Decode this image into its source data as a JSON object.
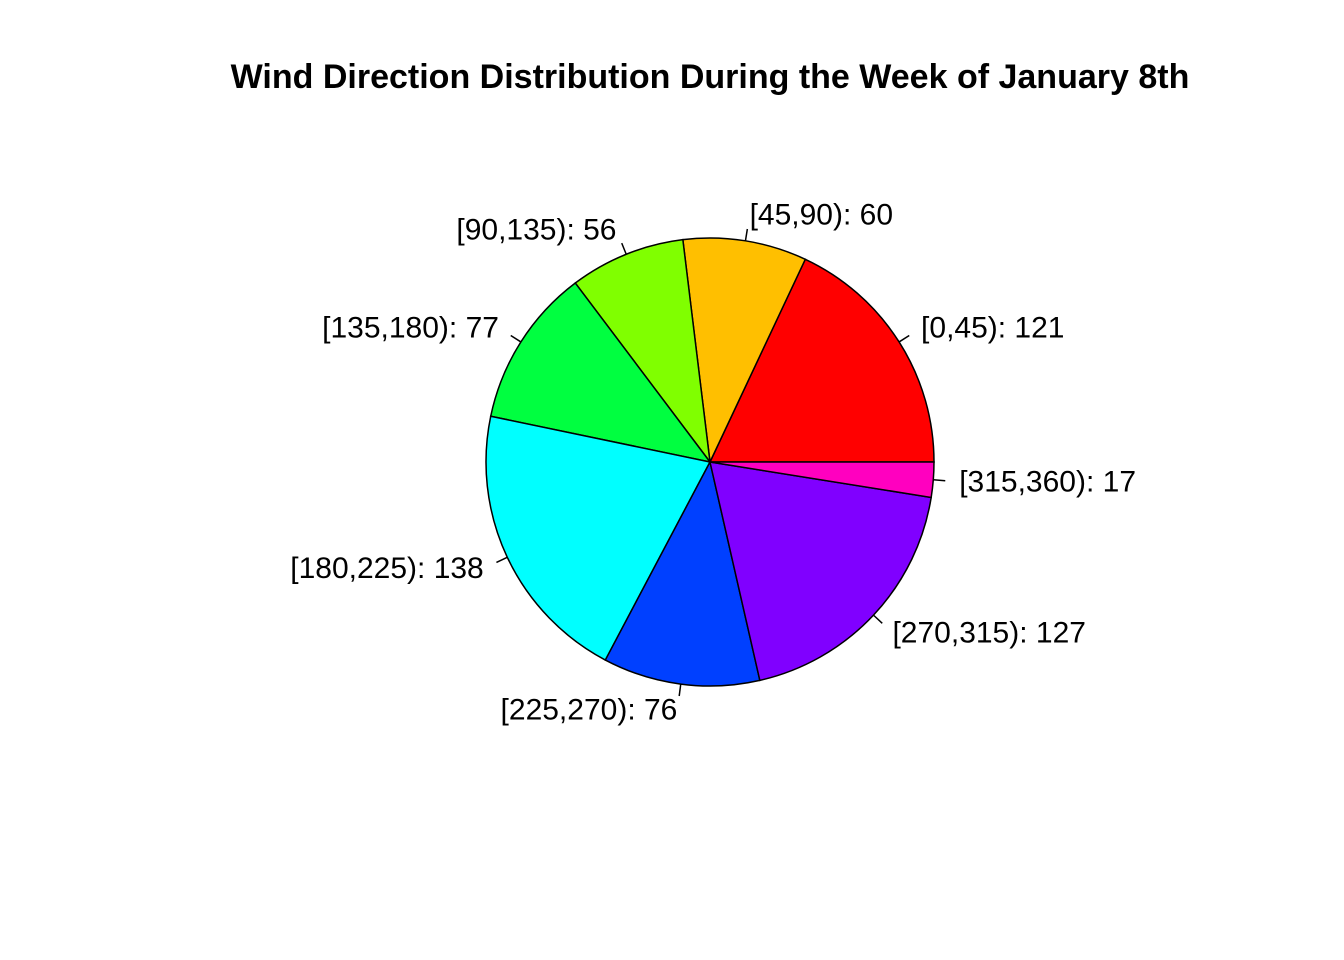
{
  "chart_data": {
    "type": "pie",
    "title": "Wind Direction Distribution During the Week of January 8th",
    "start_angle_degrees": 0,
    "direction": "counterclockwise",
    "slices": [
      {
        "label": "[0,45): 121",
        "value": 121,
        "color": "#FF0000"
      },
      {
        "label": "[45,90): 60",
        "value": 60,
        "color": "#FFBF00"
      },
      {
        "label": "[90,135): 56",
        "value": 56,
        "color": "#80FF00"
      },
      {
        "label": "[135,180): 77",
        "value": 77,
        "color": "#00FF40"
      },
      {
        "label": "[180,225): 138",
        "value": 138,
        "color": "#00FFFF"
      },
      {
        "label": "[225,270): 76",
        "value": 76,
        "color": "#0040FF"
      },
      {
        "label": "[270,315): 127",
        "value": 127,
        "color": "#8000FF"
      },
      {
        "label": "[315,360): 17",
        "value": 17,
        "color": "#FF00BF"
      }
    ]
  }
}
